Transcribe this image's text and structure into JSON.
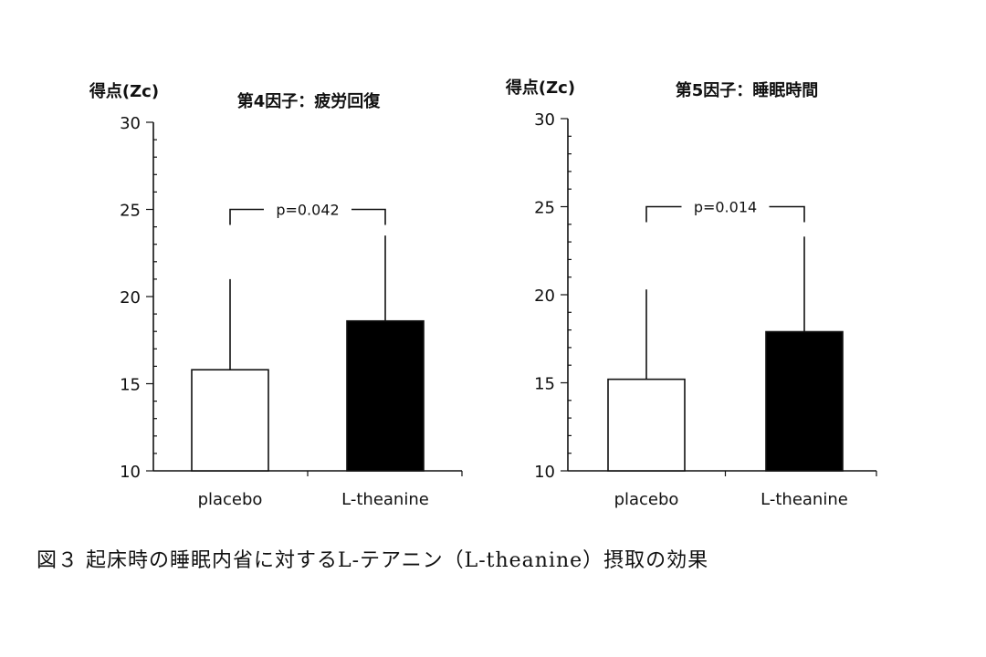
{
  "caption": "図３ 起床時の睡眠内省に対するL-テアニン（L-theanine）摂取の効果",
  "colors": {
    "ink": "#111111",
    "placebo_fill": "#ffffff",
    "theanine_fill": "#000000"
  },
  "chart_data": [
    {
      "type": "bar",
      "title": "第4因子：疲労回復",
      "ylabel": "得点(Zc)",
      "xlabel": "",
      "ylim": [
        10,
        30
      ],
      "yticks": [
        10,
        15,
        20,
        25,
        30
      ],
      "grid": false,
      "categories": [
        "placebo",
        "L-theanine"
      ],
      "values": [
        15.8,
        18.6
      ],
      "error_upper": [
        21.0,
        23.5
      ],
      "significance": {
        "label": "p=0.042",
        "between": [
          0,
          1
        ],
        "level": 25
      }
    },
    {
      "type": "bar",
      "title": "第5因子：睡眠時間",
      "ylabel": "得点(Zc)",
      "xlabel": "",
      "ylim": [
        10,
        30
      ],
      "yticks": [
        10,
        15,
        20,
        25,
        30
      ],
      "grid": false,
      "categories": [
        "placebo",
        "L-theanine"
      ],
      "values": [
        15.2,
        17.9
      ],
      "error_upper": [
        20.3,
        23.3
      ],
      "significance": {
        "label": "p=0.014",
        "between": [
          0,
          1
        ],
        "level": 25
      }
    }
  ]
}
